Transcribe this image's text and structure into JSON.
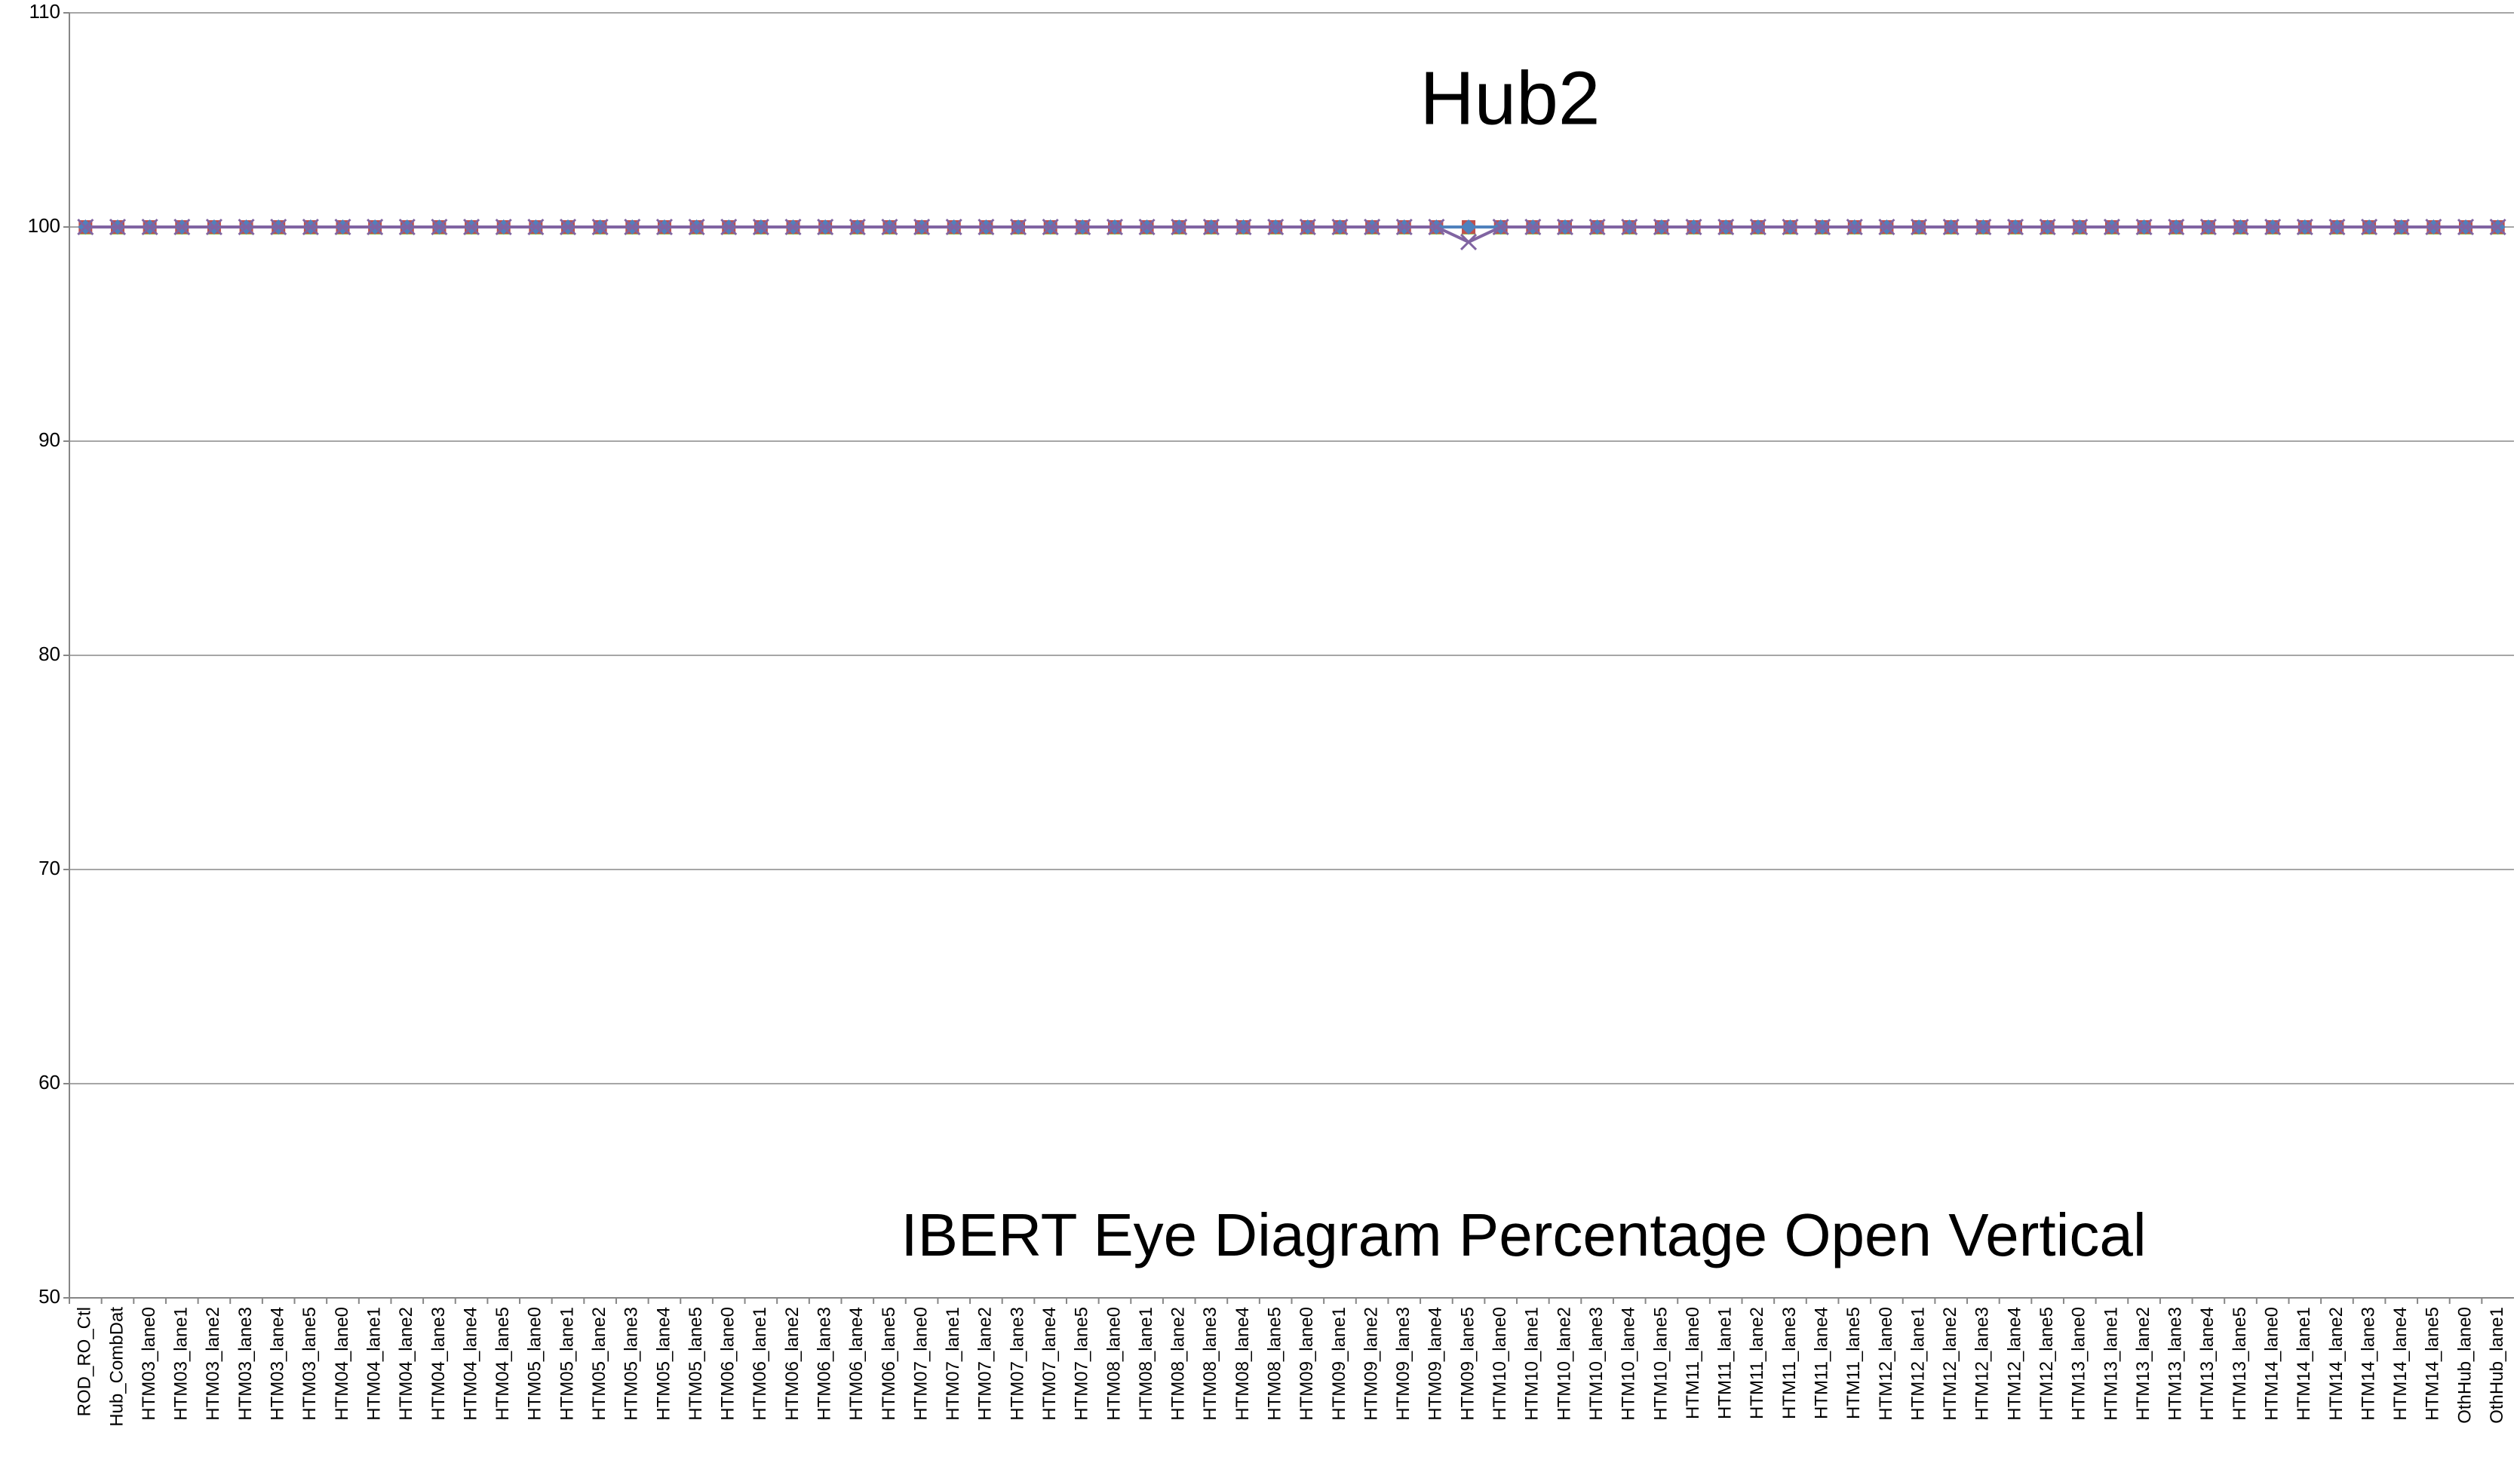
{
  "chart_data": {
    "type": "line",
    "title": "Hub2",
    "annotation": "IBERT Eye Diagram Percentage Open Vertical",
    "categories": [
      "ROD_RO_Ctl",
      "Hub_CombDat",
      "HTM03_lane0",
      "HTM03_lane1",
      "HTM03_lane2",
      "HTM03_lane3",
      "HTM03_lane4",
      "HTM03_lane5",
      "HTM04_lane0",
      "HTM04_lane1",
      "HTM04_lane2",
      "HTM04_lane3",
      "HTM04_lane4",
      "HTM04_lane5",
      "HTM05_lane0",
      "HTM05_lane1",
      "HTM05_lane2",
      "HTM05_lane3",
      "HTM05_lane4",
      "HTM05_lane5",
      "HTM06_lane0",
      "HTM06_lane1",
      "HTM06_lane2",
      "HTM06_lane3",
      "HTM06_lane4",
      "HTM06_lane5",
      "HTM07_lane0",
      "HTM07_lane1",
      "HTM07_lane2",
      "HTM07_lane3",
      "HTM07_lane4",
      "HTM07_lane5",
      "HTM08_lane0",
      "HTM08_lane1",
      "HTM08_lane2",
      "HTM08_lane3",
      "HTM08_lane4",
      "HTM08_lane5",
      "HTM09_lane0",
      "HTM09_lane1",
      "HTM09_lane2",
      "HTM09_lane3",
      "HTM09_lane4",
      "HTM09_lane5",
      "HTM10_lane0",
      "HTM10_lane1",
      "HTM10_lane2",
      "HTM10_lane3",
      "HTM10_lane4",
      "HTM10_lane5",
      "HTM11_lane0",
      "HTM11_lane1",
      "HTM11_lane2",
      "HTM11_lane3",
      "HTM11_lane4",
      "HTM11_lane5",
      "HTM12_lane0",
      "HTM12_lane1",
      "HTM12_lane2",
      "HTM12_lane3",
      "HTM12_lane4",
      "HTM12_lane5",
      "HTM13_lane0",
      "HTM13_lane1",
      "HTM13_lane2",
      "HTM13_lane3",
      "HTM13_lane4",
      "HTM13_lane5",
      "HTM14_lane0",
      "HTM14_lane1",
      "HTM14_lane2",
      "HTM14_lane3",
      "HTM14_lane4",
      "HTM14_lane5",
      "OthHub_lane0",
      "OthHub_lane1"
    ],
    "series": [
      {
        "color": "#9bbb59",
        "marker": "triangle",
        "values": [
          100,
          100,
          100,
          100,
          100,
          100,
          100,
          100,
          100,
          100,
          100,
          100,
          100,
          100,
          100,
          100,
          100,
          100,
          100,
          100,
          100,
          100,
          100,
          100,
          100,
          100,
          100,
          100,
          100,
          100,
          100,
          100,
          100,
          100,
          100,
          100,
          100,
          100,
          100,
          100,
          100,
          100,
          100,
          100,
          100,
          100,
          100,
          100,
          100,
          100,
          100,
          100,
          100,
          100,
          100,
          100,
          100,
          100,
          100,
          100,
          100,
          100,
          100,
          100,
          100,
          100,
          100,
          100,
          100,
          100,
          100,
          100,
          100,
          100,
          100,
          100
        ]
      },
      {
        "color": "#c0504d",
        "marker": "square",
        "values": [
          100,
          100,
          100,
          100,
          100,
          100,
          100,
          100,
          100,
          100,
          100,
          100,
          100,
          100,
          100,
          100,
          100,
          100,
          100,
          100,
          100,
          100,
          100,
          100,
          100,
          100,
          100,
          100,
          100,
          100,
          100,
          100,
          100,
          100,
          100,
          100,
          100,
          100,
          100,
          100,
          100,
          100,
          100,
          100,
          100,
          100,
          100,
          100,
          100,
          100,
          100,
          100,
          100,
          100,
          100,
          100,
          100,
          100,
          100,
          100,
          100,
          100,
          100,
          100,
          100,
          100,
          100,
          100,
          100,
          100,
          100,
          100,
          100,
          100,
          100,
          100
        ]
      },
      {
        "color": "#4f81bd",
        "marker": "diamond",
        "values": [
          100,
          100,
          100,
          100,
          100,
          100,
          100,
          100,
          100,
          100,
          100,
          100,
          100,
          100,
          100,
          100,
          100,
          100,
          100,
          100,
          100,
          100,
          100,
          100,
          100,
          100,
          100,
          100,
          100,
          100,
          100,
          100,
          100,
          100,
          100,
          100,
          100,
          100,
          100,
          100,
          100,
          100,
          100,
          100,
          100,
          100,
          100,
          100,
          100,
          100,
          100,
          100,
          100,
          100,
          100,
          100,
          100,
          100,
          100,
          100,
          100,
          100,
          100,
          100,
          100,
          100,
          100,
          100,
          100,
          100,
          100,
          100,
          100,
          100,
          100,
          100
        ]
      },
      {
        "color": "#8064a2",
        "marker": "x",
        "values": [
          100,
          100,
          100,
          100,
          100,
          100,
          100,
          100,
          100,
          100,
          100,
          100,
          100,
          100,
          100,
          100,
          100,
          100,
          100,
          100,
          100,
          100,
          100,
          100,
          100,
          100,
          100,
          100,
          100,
          100,
          100,
          100,
          100,
          100,
          100,
          100,
          100,
          100,
          100,
          100,
          100,
          100,
          100,
          99.3,
          100,
          100,
          100,
          100,
          100,
          100,
          100,
          100,
          100,
          100,
          100,
          100,
          100,
          100,
          100,
          100,
          100,
          100,
          100,
          100,
          100,
          100,
          100,
          100,
          100,
          100,
          100,
          100,
          100,
          100,
          100,
          100
        ]
      }
    ],
    "ylim": [
      50,
      110
    ],
    "yticks": [
      50,
      60,
      70,
      80,
      90,
      100,
      110
    ],
    "grid": true
  }
}
